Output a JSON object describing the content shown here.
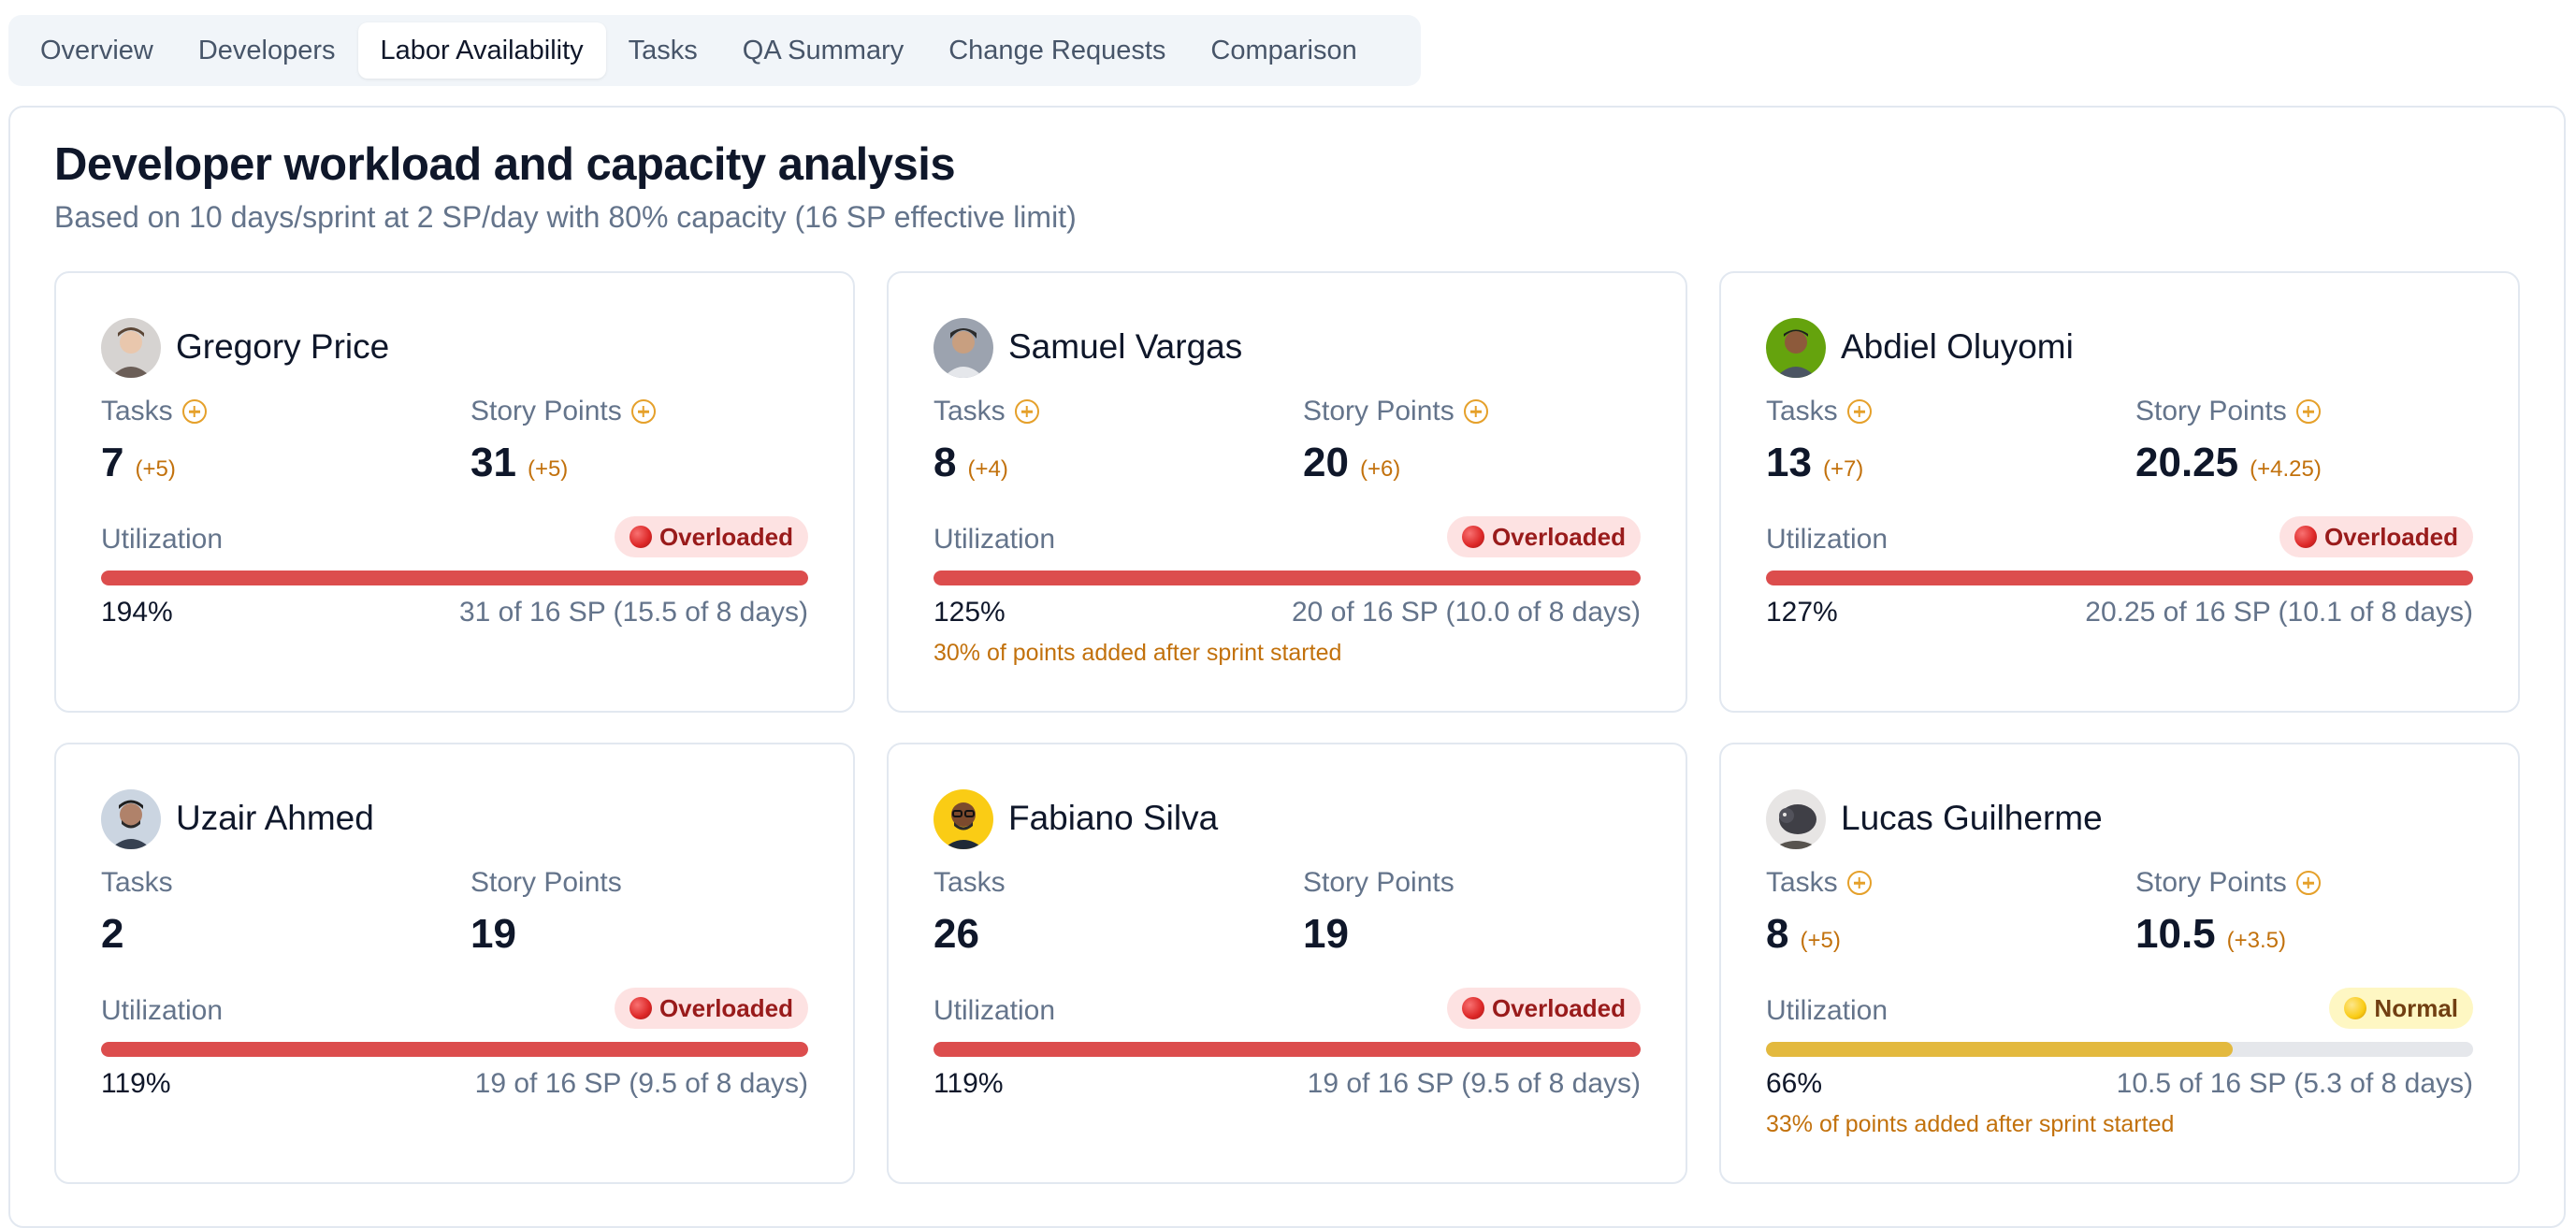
{
  "tabs": [
    {
      "label": "Overview",
      "active": false
    },
    {
      "label": "Developers",
      "active": false
    },
    {
      "label": "Labor Availability",
      "active": true
    },
    {
      "label": "Tasks",
      "active": false
    },
    {
      "label": "QA Summary",
      "active": false
    },
    {
      "label": "Change Requests",
      "active": false
    },
    {
      "label": "Comparison",
      "active": false
    }
  ],
  "header": {
    "title": "Developer workload and capacity analysis",
    "subtitle": "Based on 10 days/sprint at 2 SP/day with 80% capacity (16 SP effective limit)"
  },
  "labels": {
    "tasks": "Tasks",
    "story_points": "Story Points",
    "utilization": "Utilization"
  },
  "colors": {
    "overloaded": "#dc4d4d",
    "normal": "#e3b93e",
    "delta": "#c2710c"
  },
  "developers": [
    {
      "name": "Gregory Price",
      "tasks": "7",
      "tasks_delta": "(+5)",
      "story_points": "31",
      "sp_delta": "(+5)",
      "status": "Overloaded",
      "status_type": "over",
      "utilization_pct": "194%",
      "utilization_fraction": 1.0,
      "sp_detail": "31 of 16 SP (15.5 of 8 days)",
      "note": ""
    },
    {
      "name": "Samuel Vargas",
      "tasks": "8",
      "tasks_delta": "(+4)",
      "story_points": "20",
      "sp_delta": "(+6)",
      "status": "Overloaded",
      "status_type": "over",
      "utilization_pct": "125%",
      "utilization_fraction": 1.0,
      "sp_detail": "20 of 16 SP (10.0 of 8 days)",
      "note": "30% of points added after sprint started"
    },
    {
      "name": "Abdiel Oluyomi",
      "tasks": "13",
      "tasks_delta": "(+7)",
      "story_points": "20.25",
      "sp_delta": "(+4.25)",
      "status": "Overloaded",
      "status_type": "over",
      "utilization_pct": "127%",
      "utilization_fraction": 1.0,
      "sp_detail": "20.25 of 16 SP (10.1 of 8 days)",
      "note": ""
    },
    {
      "name": "Uzair Ahmed",
      "tasks": "2",
      "tasks_delta": "",
      "story_points": "19",
      "sp_delta": "",
      "status": "Overloaded",
      "status_type": "over",
      "utilization_pct": "119%",
      "utilization_fraction": 1.0,
      "sp_detail": "19 of 16 SP (9.5 of 8 days)",
      "note": ""
    },
    {
      "name": "Fabiano Silva",
      "tasks": "26",
      "tasks_delta": "",
      "story_points": "19",
      "sp_delta": "",
      "status": "Overloaded",
      "status_type": "over",
      "utilization_pct": "119%",
      "utilization_fraction": 1.0,
      "sp_detail": "19 of 16 SP (9.5 of 8 days)",
      "note": ""
    },
    {
      "name": "Lucas Guilherme",
      "tasks": "8",
      "tasks_delta": "(+5)",
      "story_points": "10.5",
      "sp_delta": "(+3.5)",
      "status": "Normal",
      "status_type": "normal",
      "utilization_pct": "66%",
      "utilization_fraction": 0.66,
      "sp_detail": "10.5 of 16 SP (5.3 of 8 days)",
      "note": "33% of points added after sprint started"
    }
  ]
}
